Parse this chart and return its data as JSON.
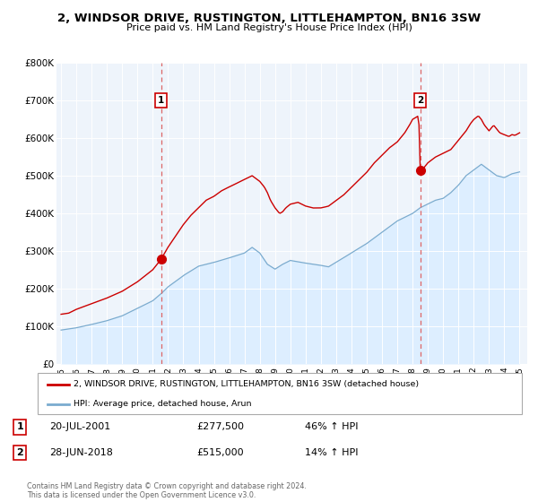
{
  "title": "2, WINDSOR DRIVE, RUSTINGTON, LITTLEHAMPTON, BN16 3SW",
  "subtitle": "Price paid vs. HM Land Registry's House Price Index (HPI)",
  "legend_label_red": "2, WINDSOR DRIVE, RUSTINGTON, LITTLEHAMPTON, BN16 3SW (detached house)",
  "legend_label_blue": "HPI: Average price, detached house, Arun",
  "transaction1_label": "1",
  "transaction1_date": "20-JUL-2001",
  "transaction1_price": "£277,500",
  "transaction1_hpi": "46% ↑ HPI",
  "transaction2_label": "2",
  "transaction2_date": "28-JUN-2018",
  "transaction2_price": "£515,000",
  "transaction2_hpi": "14% ↑ HPI",
  "footer": "Contains HM Land Registry data © Crown copyright and database right 2024.\nThis data is licensed under the Open Government Licence v3.0.",
  "color_red": "#cc0000",
  "color_blue": "#7aabcf",
  "color_blue_fill": "#ddeeff",
  "color_bg": "#eef4fb",
  "ylim": [
    0,
    800000
  ],
  "yticks": [
    0,
    100000,
    200000,
    300000,
    400000,
    500000,
    600000,
    700000,
    800000
  ],
  "ytick_labels": [
    "£0",
    "£100K",
    "£200K",
    "£300K",
    "£400K",
    "£500K",
    "£600K",
    "£700K",
    "£800K"
  ],
  "transaction1_year": 2001.54,
  "transaction1_value": 277500,
  "transaction2_year": 2018.5,
  "transaction2_value": 515000,
  "xlim_start": 1994.7,
  "xlim_end": 2025.5,
  "xtick_years": [
    1995,
    1996,
    1997,
    1998,
    1999,
    2000,
    2001,
    2002,
    2003,
    2004,
    2005,
    2006,
    2007,
    2008,
    2009,
    2010,
    2011,
    2012,
    2013,
    2014,
    2015,
    2016,
    2017,
    2018,
    2019,
    2020,
    2021,
    2022,
    2023,
    2024,
    2025
  ]
}
